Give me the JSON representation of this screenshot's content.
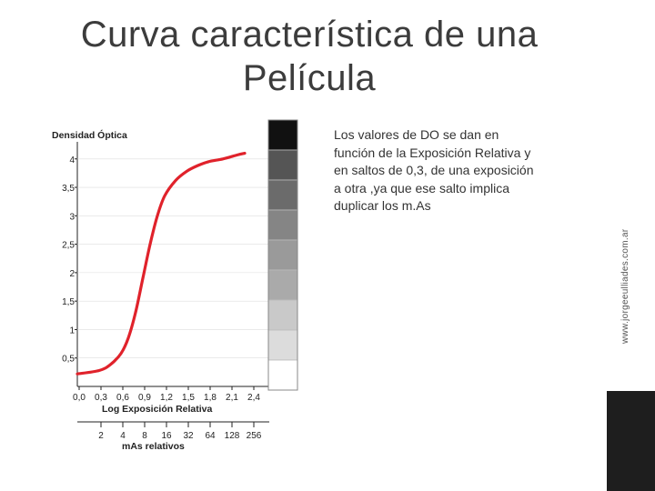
{
  "slide": {
    "title_line1": "Curva característica de una",
    "title_line2": "Película",
    "description": "Los valores de DO se dan en función de la Exposición Relativa y en saltos de 0,3, de una exposición a otra ,ya que ese salto implica duplicar los m.As",
    "side_url": "www.jorgeeulliades.com.ar"
  },
  "chart_data": {
    "type": "line",
    "ylabel": "Densidad Óptica",
    "xlabel": "Log Exposición Relativa",
    "x2label": "mAs relativos",
    "yticks": [
      "4",
      "3,5",
      "3",
      "2,5",
      "2",
      "1,5",
      "1",
      "0,5"
    ],
    "xticks": [
      "0,0",
      "0,3",
      "0,6",
      "0,9",
      "1,2",
      "1,5",
      "1,8",
      "2,1",
      "2,4"
    ],
    "x2ticks": [
      "2",
      "4",
      "8",
      "16",
      "32",
      "64",
      "128",
      "256"
    ],
    "ylim": [
      0,
      4.3
    ],
    "xlim": [
      0,
      2.4
    ],
    "series": [
      {
        "x": [
          0.0,
          0.3,
          0.45,
          0.6,
          0.7,
          0.8,
          0.9,
          1.0,
          1.1,
          1.2,
          1.35,
          1.5,
          1.65,
          1.8,
          2.0,
          2.2,
          2.3
        ],
        "y": [
          0.22,
          0.28,
          0.38,
          0.58,
          0.85,
          1.3,
          1.9,
          2.5,
          3.0,
          3.35,
          3.62,
          3.78,
          3.88,
          3.95,
          4.0,
          4.07,
          4.1
        ],
        "color": "#e0222b"
      }
    ],
    "step_wedge": [
      "#111111",
      "#555555",
      "#6b6b6b",
      "#858585",
      "#9a9a9a",
      "#aaaaaa",
      "#c9c9c9",
      "#dcdcdc",
      "#ffffff"
    ]
  }
}
